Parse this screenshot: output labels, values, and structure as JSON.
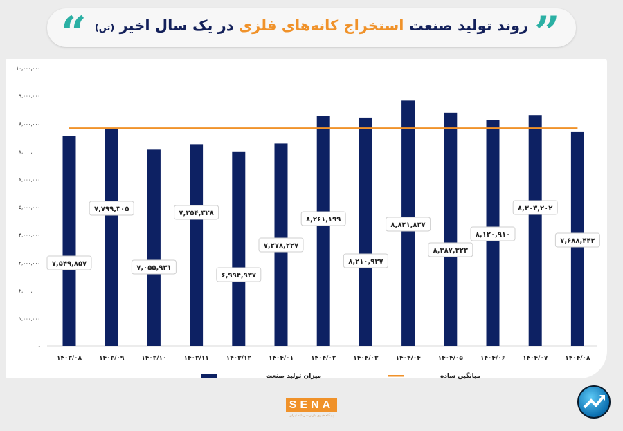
{
  "header": {
    "title_part1": "روند تولید صنعت",
    "title_highlight": "استخراج کانه‌های فلزی",
    "title_part2": "در یک سال اخیر",
    "title_unit": "(تن)"
  },
  "colors": {
    "bar": "#0d2163",
    "average_line": "#f0922a",
    "title": "#13205a",
    "highlight": "#f0922a",
    "quote": "#2bb0a4"
  },
  "logo": {
    "text": "SENA",
    "subtitle": "پایگاه خبری بازار سرمایه ایران"
  },
  "chart_data": {
    "type": "bar",
    "categories": [
      "۱۴۰۳/۰۸",
      "۱۴۰۳/۰۹",
      "۱۴۰۳/۱۰",
      "۱۴۰۳/۱۱",
      "۱۴۰۳/۱۲",
      "۱۴۰۴/۰۱",
      "۱۴۰۴/۰۲",
      "۱۴۰۴/۰۳",
      "۱۴۰۴/۰۴",
      "۱۴۰۴/۰۵",
      "۱۴۰۴/۰۶",
      "۱۴۰۴/۰۷",
      "۱۴۰۴/۰۸"
    ],
    "series": [
      {
        "name": "میزان تولید صنعت",
        "type": "bar",
        "values": [
          7549857,
          7799305,
          7055931,
          7254328,
          6994937,
          7278227,
          8261199,
          8210937,
          8821837,
          8387323,
          8120910,
          8303202,
          7688442
        ],
        "labels": [
          "۷,۵۴۹,۸۵۷",
          "۷,۷۹۹,۳۰۵",
          "۷,۰۵۵,۹۳۱",
          "۷,۲۵۴,۳۲۸",
          "۶,۹۹۴,۹۳۷",
          "۷,۲۷۸,۲۲۷",
          "۸,۲۶۱,۱۹۹",
          "۸,۲۱۰,۹۳۷",
          "۸,۸۲۱,۸۳۷",
          "۸,۳۸۷,۳۲۳",
          "۸,۱۲۰,۹۱۰",
          "۸,۳۰۳,۲۰۲",
          "۷,۶۸۸,۴۴۲"
        ]
      },
      {
        "name": "میانگین ساده",
        "type": "line",
        "value": 7825110
      }
    ],
    "ylim": [
      0,
      10000000
    ],
    "yticks": [
      0,
      1000000,
      2000000,
      3000000,
      4000000,
      5000000,
      6000000,
      7000000,
      8000000,
      9000000,
      10000000
    ],
    "ytick_labels": [
      "-",
      "۱,۰۰۰,۰۰۰",
      "۲,۰۰۰,۰۰۰",
      "۳,۰۰۰,۰۰۰",
      "۴,۰۰۰,۰۰۰",
      "۵,۰۰۰,۰۰۰",
      "۶,۰۰۰,۰۰۰",
      "۷,۰۰۰,۰۰۰",
      "۸,۰۰۰,۰۰۰",
      "۹,۰۰۰,۰۰۰",
      "۱۰,۰۰۰,۰۰۰"
    ],
    "grid": false,
    "legend": "bottom"
  }
}
